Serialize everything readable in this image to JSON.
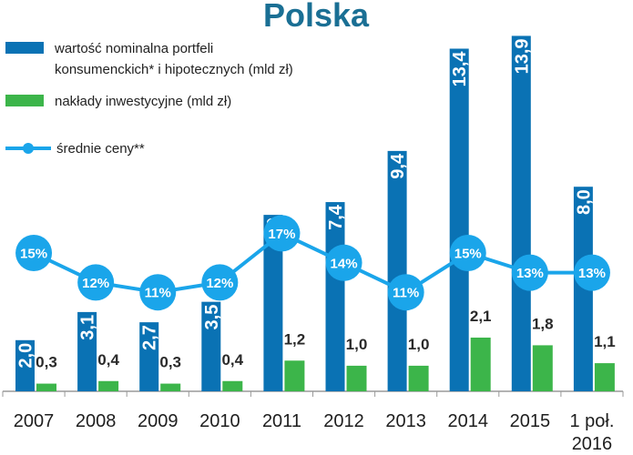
{
  "colors": {
    "title": "#1a6f94",
    "portfolio": "#0a72b4",
    "investment": "#3cb54a",
    "prices": "#1aa5ea",
    "axis": "#9a9a9a"
  },
  "legend": {
    "portfolio_line1": "wartość nominalna portfeli",
    "portfolio_line2": "konsumenckich* i hipotecznych (mld zł)",
    "investment": "nakłady inwestycyjne (mld zł)",
    "prices": "średnie ceny**"
  },
  "chart_data": {
    "type": "bar",
    "title": "Polska",
    "categories": [
      [
        "2007"
      ],
      [
        "2008"
      ],
      [
        "2009"
      ],
      [
        "2010"
      ],
      [
        "2011"
      ],
      [
        "2012"
      ],
      [
        "2013"
      ],
      [
        "2014"
      ],
      [
        "2015"
      ],
      [
        "1 poł.",
        "2016"
      ]
    ],
    "series": [
      {
        "name": "wartość nominalna portfeli konsumenckich* i hipotecznych (mld zł)",
        "type": "bar",
        "values": [
          2.0,
          3.1,
          2.7,
          3.5,
          6.9,
          7.4,
          9.4,
          13.4,
          13.9,
          8.0
        ],
        "labels": [
          "2,0",
          "3,1",
          "2,7",
          "3,5",
          "6,9",
          "7,4",
          "9,4",
          "13,4",
          "13,9",
          "8,0"
        ]
      },
      {
        "name": "nakłady inwestycyjne (mld zł)",
        "type": "bar",
        "values": [
          0.3,
          0.4,
          0.3,
          0.4,
          1.2,
          1.0,
          1.0,
          2.1,
          1.8,
          1.1
        ],
        "labels": [
          "0,3",
          "0,4",
          "0,3",
          "0,4",
          "1,2",
          "1,0",
          "1,0",
          "2,1",
          "1,8",
          "1,1"
        ]
      },
      {
        "name": "średnie ceny**",
        "type": "line",
        "values": [
          15,
          12,
          11,
          12,
          17,
          14,
          11,
          15,
          13,
          13
        ],
        "labels": [
          "15%",
          "12%",
          "11%",
          "12%",
          "17%",
          "14%",
          "11%",
          "15%",
          "13%",
          "13%"
        ]
      }
    ],
    "ylim": [
      0,
      14.2
    ],
    "line_ylim": [
      0,
      30
    ],
    "grid": false,
    "legend_position": "top-left"
  }
}
